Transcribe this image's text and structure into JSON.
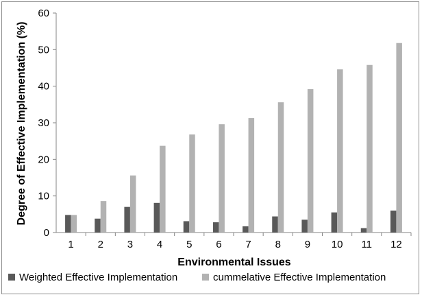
{
  "chart_data": {
    "type": "bar",
    "title": "",
    "xlabel": "Environmental Issues",
    "ylabel": "Degree of Effective Implementation (%)",
    "ylim": [
      0,
      60
    ],
    "yticks": [
      0,
      10,
      20,
      30,
      40,
      50,
      60
    ],
    "grid": false,
    "legend_position": "bottom",
    "categories": [
      "1",
      "2",
      "3",
      "4",
      "5",
      "6",
      "7",
      "8",
      "9",
      "10",
      "11",
      "12"
    ],
    "series": [
      {
        "name": "Weighted Effective Implementation",
        "color": "#595959",
        "values": [
          4.8,
          3.8,
          7.0,
          8.1,
          3.1,
          2.8,
          1.7,
          4.4,
          3.5,
          5.5,
          1.2,
          6.0
        ]
      },
      {
        "name": "cummelative Effective Implementation",
        "color": "#b2b2b2",
        "values": [
          4.8,
          8.6,
          15.6,
          23.7,
          26.8,
          29.6,
          31.3,
          35.6,
          39.2,
          44.6,
          45.8,
          51.8
        ]
      }
    ]
  }
}
